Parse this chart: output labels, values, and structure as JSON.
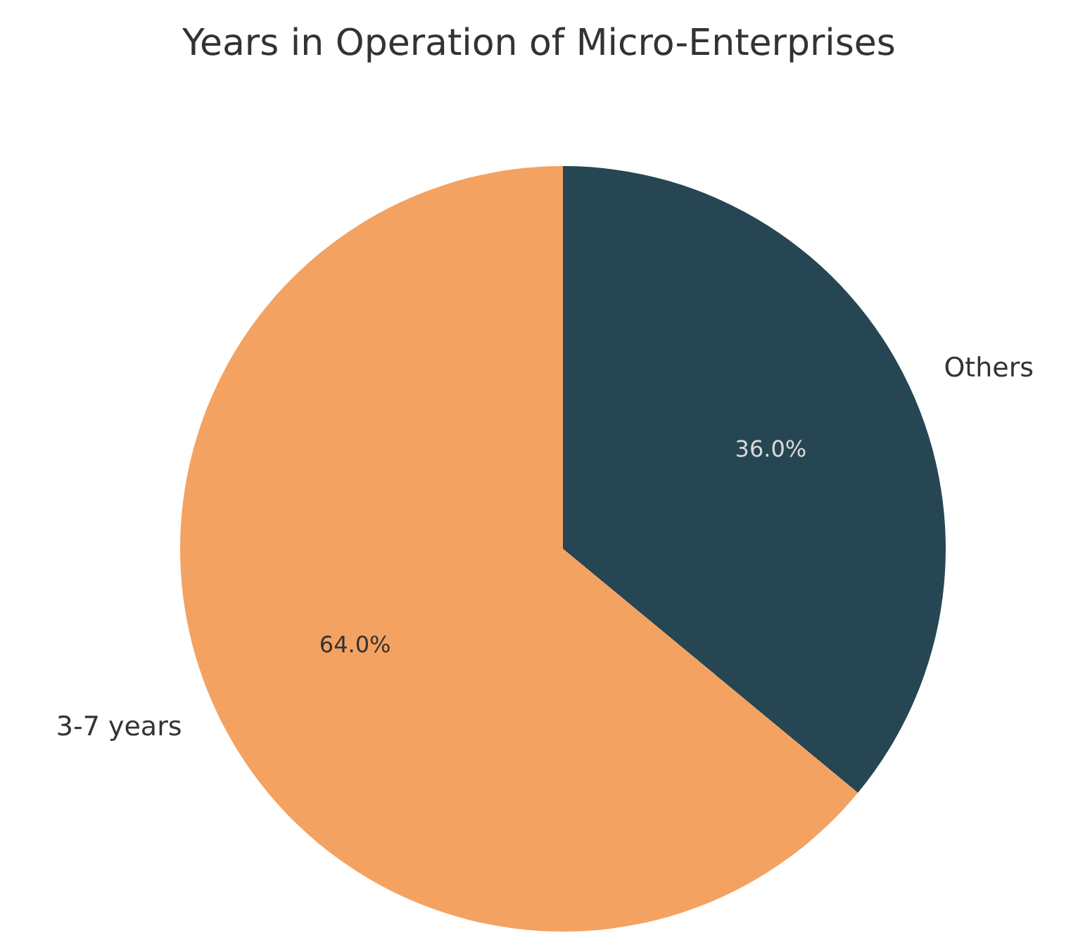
{
  "chart_data": {
    "type": "pie",
    "title": "Years in Operation of Micro-Enterprises",
    "categories": [
      "Others",
      "3-7 years"
    ],
    "values": [
      36.0,
      64.0
    ],
    "colors": [
      "#264653",
      "#f4a261"
    ],
    "value_labels": [
      "36.0%",
      "64.0%"
    ],
    "legend": false
  }
}
